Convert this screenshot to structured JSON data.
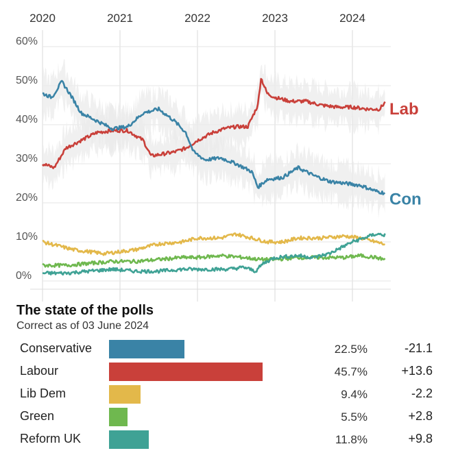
{
  "chart_data": {
    "type": "line",
    "x_labels": [
      "2020",
      "2021",
      "2022",
      "2023",
      "2024"
    ],
    "y_ticks": [
      "60%",
      "50%",
      "40%",
      "30%",
      "20%",
      "10%",
      "0%"
    ],
    "ylim": [
      0,
      60
    ],
    "grid": true,
    "series": [
      {
        "name": "Lab",
        "color": "#c9403a",
        "label_value": 44,
        "points": [
          [
            2020.0,
            30
          ],
          [
            2020.15,
            29
          ],
          [
            2020.3,
            34
          ],
          [
            2020.5,
            36
          ],
          [
            2020.7,
            38
          ],
          [
            2020.9,
            38.5
          ],
          [
            2021.1,
            38.5
          ],
          [
            2021.3,
            36
          ],
          [
            2021.4,
            32
          ],
          [
            2021.55,
            32.5
          ],
          [
            2021.7,
            33
          ],
          [
            2021.85,
            34
          ],
          [
            2022.0,
            36
          ],
          [
            2022.2,
            38
          ],
          [
            2022.35,
            39
          ],
          [
            2022.5,
            39.5
          ],
          [
            2022.65,
            39.5
          ],
          [
            2022.78,
            45
          ],
          [
            2022.82,
            52
          ],
          [
            2022.9,
            48
          ],
          [
            2023.0,
            47
          ],
          [
            2023.2,
            46
          ],
          [
            2023.4,
            46
          ],
          [
            2023.6,
            45
          ],
          [
            2023.8,
            44.5
          ],
          [
            2024.0,
            44.5
          ],
          [
            2024.2,
            44
          ],
          [
            2024.35,
            44
          ],
          [
            2024.42,
            45.7
          ]
        ]
      },
      {
        "name": "Con",
        "color": "#3a83a6",
        "label_value": 21,
        "points": [
          [
            2020.0,
            48
          ],
          [
            2020.12,
            47
          ],
          [
            2020.25,
            51
          ],
          [
            2020.35,
            48
          ],
          [
            2020.5,
            43
          ],
          [
            2020.7,
            41
          ],
          [
            2020.9,
            39
          ],
          [
            2021.1,
            39.5
          ],
          [
            2021.3,
            43
          ],
          [
            2021.5,
            44
          ],
          [
            2021.7,
            41
          ],
          [
            2021.85,
            38
          ],
          [
            2021.95,
            33
          ],
          [
            2022.1,
            31
          ],
          [
            2022.3,
            31.5
          ],
          [
            2022.5,
            30
          ],
          [
            2022.7,
            28
          ],
          [
            2022.78,
            24
          ],
          [
            2022.9,
            26
          ],
          [
            2023.1,
            26.5
          ],
          [
            2023.3,
            29
          ],
          [
            2023.5,
            27
          ],
          [
            2023.7,
            25.5
          ],
          [
            2023.9,
            25
          ],
          [
            2024.1,
            24.5
          ],
          [
            2024.3,
            23
          ],
          [
            2024.42,
            22.5
          ]
        ]
      },
      {
        "name": "Lib Dem",
        "color": "#e3b84a",
        "points": [
          [
            2020.0,
            10
          ],
          [
            2020.2,
            9
          ],
          [
            2020.4,
            8
          ],
          [
            2020.6,
            7.5
          ],
          [
            2020.8,
            7
          ],
          [
            2021.0,
            7.5
          ],
          [
            2021.2,
            8
          ],
          [
            2021.5,
            9.5
          ],
          [
            2021.8,
            10
          ],
          [
            2022.0,
            11
          ],
          [
            2022.3,
            11
          ],
          [
            2022.5,
            12
          ],
          [
            2022.7,
            11
          ],
          [
            2022.9,
            10
          ],
          [
            2023.1,
            10
          ],
          [
            2023.3,
            11
          ],
          [
            2023.6,
            11
          ],
          [
            2023.9,
            11.5
          ],
          [
            2024.1,
            11
          ],
          [
            2024.3,
            10
          ],
          [
            2024.42,
            9.4
          ]
        ]
      },
      {
        "name": "Green",
        "color": "#6fb84f",
        "points": [
          [
            2020.0,
            4
          ],
          [
            2020.3,
            4
          ],
          [
            2020.6,
            4.5
          ],
          [
            2020.9,
            5
          ],
          [
            2021.2,
            5
          ],
          [
            2021.5,
            5.5
          ],
          [
            2021.8,
            6
          ],
          [
            2022.0,
            6
          ],
          [
            2022.3,
            6.5
          ],
          [
            2022.6,
            6
          ],
          [
            2022.8,
            5.5
          ],
          [
            2023.0,
            5.5
          ],
          [
            2023.3,
            6
          ],
          [
            2023.6,
            6
          ],
          [
            2023.9,
            6
          ],
          [
            2024.1,
            6.5
          ],
          [
            2024.3,
            6
          ],
          [
            2024.42,
            5.5
          ]
        ]
      },
      {
        "name": "Reform UK",
        "color": "#3fa295",
        "points": [
          [
            2020.0,
            2
          ],
          [
            2020.3,
            2
          ],
          [
            2020.6,
            2.5
          ],
          [
            2020.9,
            3
          ],
          [
            2021.2,
            2.5
          ],
          [
            2021.5,
            2.5
          ],
          [
            2021.8,
            3
          ],
          [
            2022.1,
            3
          ],
          [
            2022.4,
            3
          ],
          [
            2022.6,
            3.5
          ],
          [
            2022.75,
            2.5
          ],
          [
            2022.85,
            4.5
          ],
          [
            2023.0,
            6
          ],
          [
            2023.3,
            6.5
          ],
          [
            2023.5,
            6
          ],
          [
            2023.7,
            7
          ],
          [
            2023.9,
            9
          ],
          [
            2024.0,
            10
          ],
          [
            2024.15,
            11
          ],
          [
            2024.3,
            12
          ],
          [
            2024.42,
            11.8
          ]
        ]
      }
    ]
  },
  "summary": {
    "title": "The state of the polls",
    "subtitle": "Correct as of 03 June 2024",
    "max_value": 50,
    "rows": [
      {
        "party": "Conservative",
        "pct": "22.5%",
        "value": 22.5,
        "change": "-21.1",
        "color": "#3a83a6"
      },
      {
        "party": "Labour",
        "pct": "45.7%",
        "value": 45.7,
        "change": "+13.6",
        "color": "#c9403a"
      },
      {
        "party": "Lib Dem",
        "pct": "9.4%",
        "value": 9.4,
        "change": "-2.2",
        "color": "#e3b84a"
      },
      {
        "party": "Green",
        "pct": "5.5%",
        "value": 5.5,
        "change": "+2.8",
        "color": "#6fb84f"
      },
      {
        "party": "Reform UK",
        "pct": "11.8%",
        "value": 11.8,
        "change": "+9.8",
        "color": "#3fa295"
      }
    ]
  }
}
